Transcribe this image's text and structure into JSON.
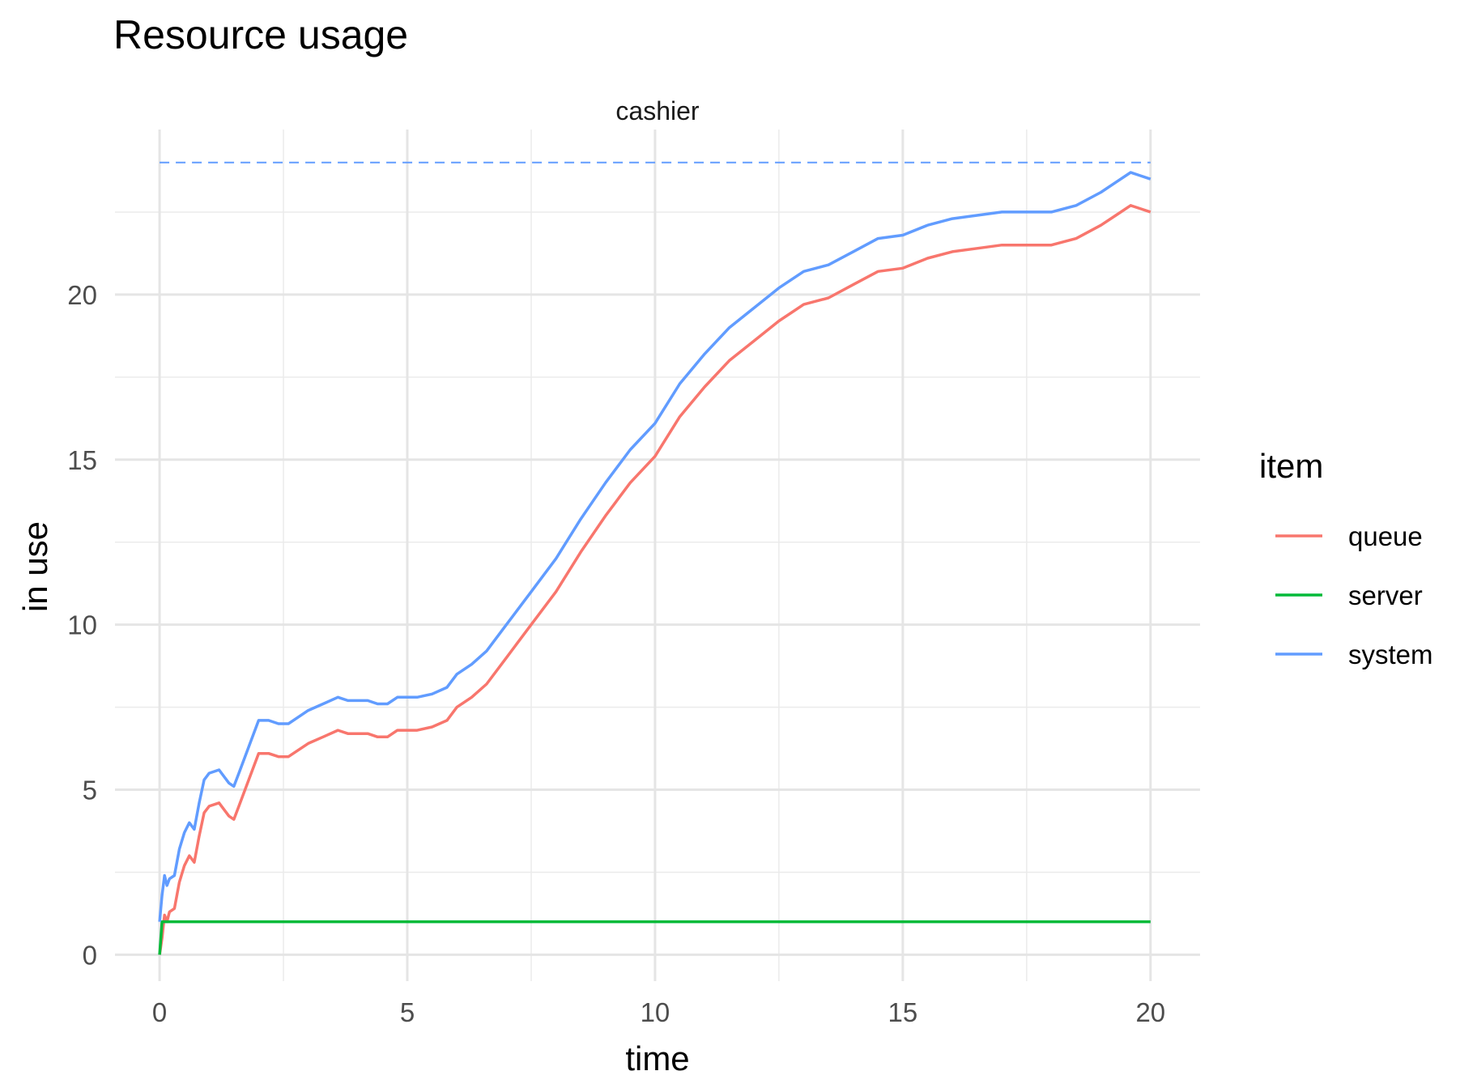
{
  "chart_data": {
    "type": "line",
    "title": "Resource usage",
    "facet_label": "cashier",
    "xlabel": "time",
    "ylabel": "in use",
    "xlim": [
      -0.9,
      21.0
    ],
    "ylim": [
      -0.8,
      25.0
    ],
    "x_ticks": [
      0,
      5,
      10,
      15,
      20
    ],
    "y_ticks": [
      0,
      5,
      10,
      15,
      20
    ],
    "grid": true,
    "legend": {
      "title": "item",
      "position": "right"
    },
    "capacity_line": {
      "y": 24.0,
      "color": "#619CFF",
      "style": "dashed"
    },
    "series": [
      {
        "name": "queue",
        "color": "#F8766D",
        "x": [
          0,
          0.05,
          0.1,
          0.15,
          0.2,
          0.3,
          0.4,
          0.5,
          0.6,
          0.7,
          0.8,
          0.9,
          1.0,
          1.2,
          1.4,
          1.5,
          1.6,
          1.8,
          2.0,
          2.2,
          2.4,
          2.6,
          2.8,
          3.0,
          3.3,
          3.6,
          3.8,
          4.0,
          4.2,
          4.4,
          4.6,
          4.8,
          5.0,
          5.2,
          5.5,
          5.8,
          6.0,
          6.3,
          6.6,
          7.0,
          7.5,
          8.0,
          8.5,
          9.0,
          9.5,
          10.0,
          10.5,
          11.0,
          11.5,
          12.0,
          12.5,
          13.0,
          13.5,
          14.0,
          14.5,
          15.0,
          15.5,
          16.0,
          16.5,
          17.0,
          17.5,
          18.0,
          18.5,
          19.0,
          19.3,
          19.6,
          19.8,
          20.0
        ],
        "y": [
          0,
          0.5,
          1.2,
          1.0,
          1.3,
          1.4,
          2.2,
          2.7,
          3.0,
          2.8,
          3.6,
          4.3,
          4.5,
          4.6,
          4.2,
          4.1,
          4.5,
          5.3,
          6.1,
          6.1,
          6.0,
          6.0,
          6.2,
          6.4,
          6.6,
          6.8,
          6.7,
          6.7,
          6.7,
          6.6,
          6.6,
          6.8,
          6.8,
          6.8,
          6.9,
          7.1,
          7.5,
          7.8,
          8.2,
          9.0,
          10.0,
          11.0,
          12.2,
          13.3,
          14.3,
          15.1,
          16.3,
          17.2,
          18.0,
          18.6,
          19.2,
          19.7,
          19.9,
          20.3,
          20.7,
          20.8,
          21.1,
          21.3,
          21.4,
          21.5,
          21.5,
          21.5,
          21.7,
          22.1,
          22.4,
          22.7,
          22.6,
          22.5
        ]
      },
      {
        "name": "server",
        "color": "#00BA38",
        "x": [
          0,
          0.05,
          20
        ],
        "y": [
          0,
          1,
          1
        ]
      },
      {
        "name": "system",
        "color": "#619CFF",
        "x": [
          0,
          0.05,
          0.1,
          0.15,
          0.2,
          0.3,
          0.4,
          0.5,
          0.6,
          0.7,
          0.8,
          0.9,
          1.0,
          1.2,
          1.4,
          1.5,
          1.6,
          1.8,
          2.0,
          2.2,
          2.4,
          2.6,
          2.8,
          3.0,
          3.3,
          3.6,
          3.8,
          4.0,
          4.2,
          4.4,
          4.6,
          4.8,
          5.0,
          5.2,
          5.5,
          5.8,
          6.0,
          6.3,
          6.6,
          7.0,
          7.5,
          8.0,
          8.5,
          9.0,
          9.5,
          10.0,
          10.5,
          11.0,
          11.5,
          12.0,
          12.5,
          13.0,
          13.5,
          14.0,
          14.5,
          15.0,
          15.5,
          16.0,
          16.5,
          17.0,
          17.5,
          18.0,
          18.5,
          19.0,
          19.3,
          19.6,
          19.8,
          20.0
        ],
        "y": [
          1,
          1.8,
          2.4,
          2.1,
          2.3,
          2.4,
          3.2,
          3.7,
          4.0,
          3.8,
          4.6,
          5.3,
          5.5,
          5.6,
          5.2,
          5.1,
          5.5,
          6.3,
          7.1,
          7.1,
          7.0,
          7.0,
          7.2,
          7.4,
          7.6,
          7.8,
          7.7,
          7.7,
          7.7,
          7.6,
          7.6,
          7.8,
          7.8,
          7.8,
          7.9,
          8.1,
          8.5,
          8.8,
          9.2,
          10.0,
          11.0,
          12.0,
          13.2,
          14.3,
          15.3,
          16.1,
          17.3,
          18.2,
          19.0,
          19.6,
          20.2,
          20.7,
          20.9,
          21.3,
          21.7,
          21.8,
          22.1,
          22.3,
          22.4,
          22.5,
          22.5,
          22.5,
          22.7,
          23.1,
          23.4,
          23.7,
          23.6,
          23.5
        ]
      }
    ]
  }
}
